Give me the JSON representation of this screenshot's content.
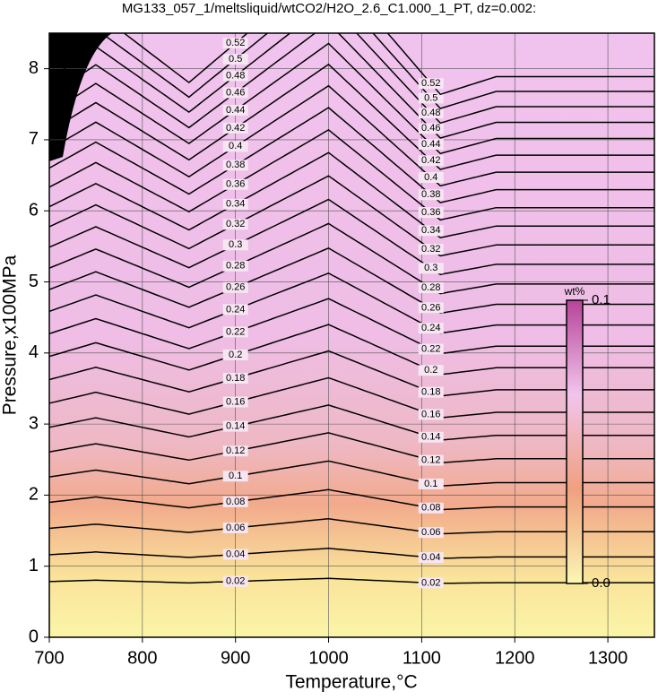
{
  "chart_data": {
    "type": "contour",
    "title": "MG133_057_1/meltsliquid/wtCO2/H2O_2.6_C1.000_1_PT, dz=0.002:",
    "xlabel": "Temperature,°C",
    "ylabel": "Pressure,x100MPa",
    "xlim": [
      700,
      1350
    ],
    "ylim": [
      0,
      8.5
    ],
    "xticks": [
      700,
      800,
      900,
      1000,
      1100,
      1200,
      1300
    ],
    "yticks": [
      0,
      1,
      2,
      3,
      4,
      5,
      6,
      7,
      8
    ],
    "grid": true,
    "levels": [
      0.02,
      0.04,
      0.06,
      0.08,
      0.1,
      0.12,
      0.14,
      0.16,
      0.18,
      0.2,
      0.22,
      0.24,
      0.26,
      0.28,
      0.3,
      0.32,
      0.34,
      0.36,
      0.38,
      0.4,
      0.42,
      0.44,
      0.46,
      0.48,
      0.5,
      0.52
    ],
    "colorbar": {
      "label": "wt%",
      "lim": [
        0,
        0.1
      ],
      "ticks": [
        {
          "value": 0,
          "label": "0.0"
        },
        0.1
      ],
      "colors": [
        "#fbf7b4",
        "#f0a07e",
        "#f2c4ec",
        "#b7449a"
      ]
    }
  }
}
